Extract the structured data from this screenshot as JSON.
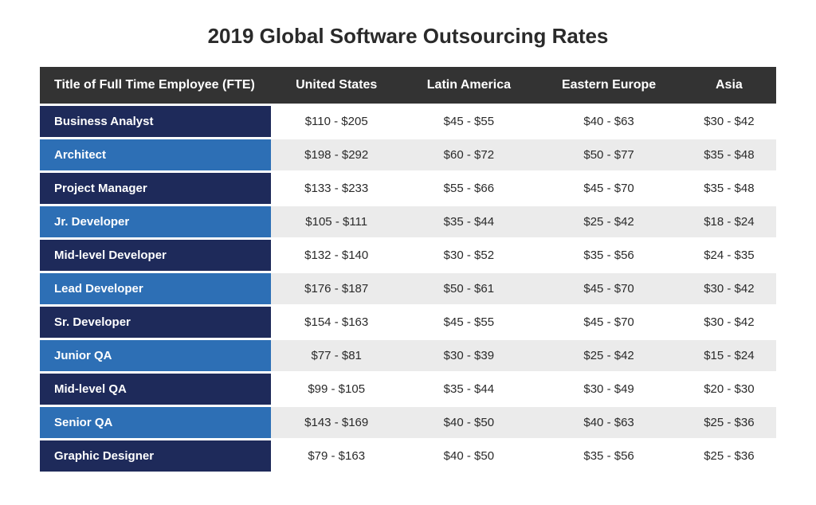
{
  "title": "2019 Global Software Outsourcing Rates",
  "table": {
    "type": "table",
    "colors": {
      "header_bg": "#333333",
      "header_text": "#ffffff",
      "label_dark": "#1e2a5a",
      "label_light": "#2d6fb5",
      "label_text": "#ffffff",
      "cell_white": "#ffffff",
      "cell_grey": "#ebebeb",
      "cell_text": "#2a2a2a"
    },
    "title_fontsize": 26,
    "header_fontsize": 16,
    "cell_fontsize": 15,
    "columns": [
      "Title of Full Time Employee (FTE)",
      "United States",
      "Latin America",
      "Eastern Europe",
      "Asia"
    ],
    "rows": [
      {
        "label": "Business Analyst",
        "values": [
          "$110 - $205",
          "$45 - $55",
          "$40 - $63",
          "$30 - $42"
        ]
      },
      {
        "label": "Architect",
        "values": [
          "$198 - $292",
          "$60 - $72",
          "$50 - $77",
          "$35 - $48"
        ]
      },
      {
        "label": "Project Manager",
        "values": [
          "$133 - $233",
          "$55 - $66",
          "$45 - $70",
          "$35 - $48"
        ]
      },
      {
        "label": "Jr. Developer",
        "values": [
          "$105 - $111",
          "$35 - $44",
          "$25 - $42",
          "$18 - $24"
        ]
      },
      {
        "label": "Mid-level Developer",
        "values": [
          "$132 - $140",
          "$30 - $52",
          "$35 - $56",
          "$24 - $35"
        ]
      },
      {
        "label": "Lead Developer",
        "values": [
          "$176 - $187",
          "$50 - $61",
          "$45 - $70",
          "$30 - $42"
        ]
      },
      {
        "label": "Sr. Developer",
        "values": [
          "$154 - $163",
          "$45 - $55",
          "$45 - $70",
          "$30 - $42"
        ]
      },
      {
        "label": "Junior QA",
        "values": [
          "$77 - $81",
          "$30 - $39",
          "$25 - $42",
          "$15 - $24"
        ]
      },
      {
        "label": "Mid-level QA",
        "values": [
          "$99 - $105",
          "$35 - $44",
          "$30 - $49",
          "$20 - $30"
        ]
      },
      {
        "label": "Senior QA",
        "values": [
          "$143 - $169",
          "$40 - $50",
          "$40 - $63",
          "$25 - $36"
        ]
      },
      {
        "label": "Graphic Designer",
        "values": [
          "$79 - $163",
          "$40 - $50",
          "$35 - $56",
          "$25 - $36"
        ]
      }
    ]
  }
}
